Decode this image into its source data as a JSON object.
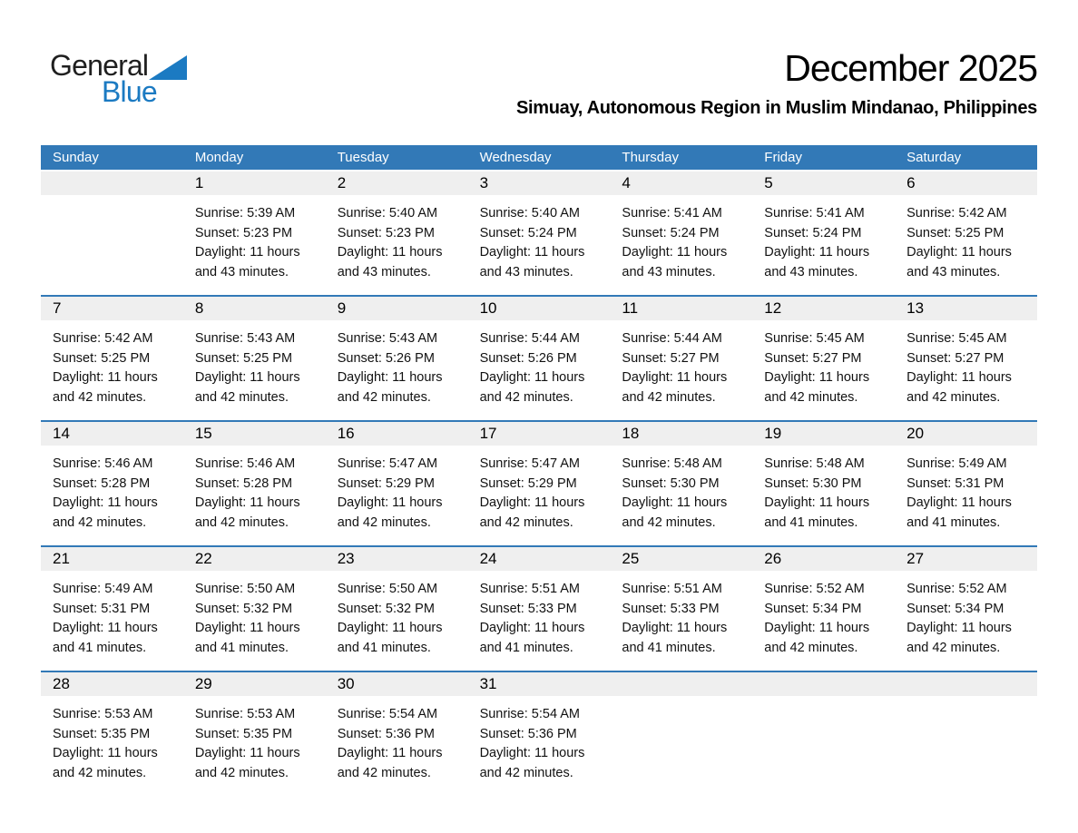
{
  "logo": {
    "general": "General",
    "blue": "Blue",
    "triangle_icon": "blue-sail-triangle"
  },
  "header": {
    "title": "December 2025",
    "subtitle": "Simuay, Autonomous Region in Muslim Mindanao, Philippines"
  },
  "colors": {
    "header_blue": "#3279b7",
    "week_divider_blue": "#3279b7",
    "day_band_gray": "#efefef",
    "logo_blue": "#1b7ac2",
    "header_text": "#ffffff"
  },
  "calendar": {
    "day_headers": [
      "Sunday",
      "Monday",
      "Tuesday",
      "Wednesday",
      "Thursday",
      "Friday",
      "Saturday"
    ],
    "weeks": [
      [
        null,
        {
          "day": "1",
          "sunrise": "Sunrise: 5:39 AM",
          "sunset": "Sunset: 5:23 PM",
          "daylight": [
            "Daylight: 11 hours",
            "and 43 minutes."
          ]
        },
        {
          "day": "2",
          "sunrise": "Sunrise: 5:40 AM",
          "sunset": "Sunset: 5:23 PM",
          "daylight": [
            "Daylight: 11 hours",
            "and 43 minutes."
          ]
        },
        {
          "day": "3",
          "sunrise": "Sunrise: 5:40 AM",
          "sunset": "Sunset: 5:24 PM",
          "daylight": [
            "Daylight: 11 hours",
            "and 43 minutes."
          ]
        },
        {
          "day": "4",
          "sunrise": "Sunrise: 5:41 AM",
          "sunset": "Sunset: 5:24 PM",
          "daylight": [
            "Daylight: 11 hours",
            "and 43 minutes."
          ]
        },
        {
          "day": "5",
          "sunrise": "Sunrise: 5:41 AM",
          "sunset": "Sunset: 5:24 PM",
          "daylight": [
            "Daylight: 11 hours",
            "and 43 minutes."
          ]
        },
        {
          "day": "6",
          "sunrise": "Sunrise: 5:42 AM",
          "sunset": "Sunset: 5:25 PM",
          "daylight": [
            "Daylight: 11 hours",
            "and 43 minutes."
          ]
        }
      ],
      [
        {
          "day": "7",
          "sunrise": "Sunrise: 5:42 AM",
          "sunset": "Sunset: 5:25 PM",
          "daylight": [
            "Daylight: 11 hours",
            "and 42 minutes."
          ]
        },
        {
          "day": "8",
          "sunrise": "Sunrise: 5:43 AM",
          "sunset": "Sunset: 5:25 PM",
          "daylight": [
            "Daylight: 11 hours",
            "and 42 minutes."
          ]
        },
        {
          "day": "9",
          "sunrise": "Sunrise: 5:43 AM",
          "sunset": "Sunset: 5:26 PM",
          "daylight": [
            "Daylight: 11 hours",
            "and 42 minutes."
          ]
        },
        {
          "day": "10",
          "sunrise": "Sunrise: 5:44 AM",
          "sunset": "Sunset: 5:26 PM",
          "daylight": [
            "Daylight: 11 hours",
            "and 42 minutes."
          ]
        },
        {
          "day": "11",
          "sunrise": "Sunrise: 5:44 AM",
          "sunset": "Sunset: 5:27 PM",
          "daylight": [
            "Daylight: 11 hours",
            "and 42 minutes."
          ]
        },
        {
          "day": "12",
          "sunrise": "Sunrise: 5:45 AM",
          "sunset": "Sunset: 5:27 PM",
          "daylight": [
            "Daylight: 11 hours",
            "and 42 minutes."
          ]
        },
        {
          "day": "13",
          "sunrise": "Sunrise: 5:45 AM",
          "sunset": "Sunset: 5:27 PM",
          "daylight": [
            "Daylight: 11 hours",
            "and 42 minutes."
          ]
        }
      ],
      [
        {
          "day": "14",
          "sunrise": "Sunrise: 5:46 AM",
          "sunset": "Sunset: 5:28 PM",
          "daylight": [
            "Daylight: 11 hours",
            "and 42 minutes."
          ]
        },
        {
          "day": "15",
          "sunrise": "Sunrise: 5:46 AM",
          "sunset": "Sunset: 5:28 PM",
          "daylight": [
            "Daylight: 11 hours",
            "and 42 minutes."
          ]
        },
        {
          "day": "16",
          "sunrise": "Sunrise: 5:47 AM",
          "sunset": "Sunset: 5:29 PM",
          "daylight": [
            "Daylight: 11 hours",
            "and 42 minutes."
          ]
        },
        {
          "day": "17",
          "sunrise": "Sunrise: 5:47 AM",
          "sunset": "Sunset: 5:29 PM",
          "daylight": [
            "Daylight: 11 hours",
            "and 42 minutes."
          ]
        },
        {
          "day": "18",
          "sunrise": "Sunrise: 5:48 AM",
          "sunset": "Sunset: 5:30 PM",
          "daylight": [
            "Daylight: 11 hours",
            "and 42 minutes."
          ]
        },
        {
          "day": "19",
          "sunrise": "Sunrise: 5:48 AM",
          "sunset": "Sunset: 5:30 PM",
          "daylight": [
            "Daylight: 11 hours",
            "and 41 minutes."
          ]
        },
        {
          "day": "20",
          "sunrise": "Sunrise: 5:49 AM",
          "sunset": "Sunset: 5:31 PM",
          "daylight": [
            "Daylight: 11 hours",
            "and 41 minutes."
          ]
        }
      ],
      [
        {
          "day": "21",
          "sunrise": "Sunrise: 5:49 AM",
          "sunset": "Sunset: 5:31 PM",
          "daylight": [
            "Daylight: 11 hours",
            "and 41 minutes."
          ]
        },
        {
          "day": "22",
          "sunrise": "Sunrise: 5:50 AM",
          "sunset": "Sunset: 5:32 PM",
          "daylight": [
            "Daylight: 11 hours",
            "and 41 minutes."
          ]
        },
        {
          "day": "23",
          "sunrise": "Sunrise: 5:50 AM",
          "sunset": "Sunset: 5:32 PM",
          "daylight": [
            "Daylight: 11 hours",
            "and 41 minutes."
          ]
        },
        {
          "day": "24",
          "sunrise": "Sunrise: 5:51 AM",
          "sunset": "Sunset: 5:33 PM",
          "daylight": [
            "Daylight: 11 hours",
            "and 41 minutes."
          ]
        },
        {
          "day": "25",
          "sunrise": "Sunrise: 5:51 AM",
          "sunset": "Sunset: 5:33 PM",
          "daylight": [
            "Daylight: 11 hours",
            "and 41 minutes."
          ]
        },
        {
          "day": "26",
          "sunrise": "Sunrise: 5:52 AM",
          "sunset": "Sunset: 5:34 PM",
          "daylight": [
            "Daylight: 11 hours",
            "and 42 minutes."
          ]
        },
        {
          "day": "27",
          "sunrise": "Sunrise: 5:52 AM",
          "sunset": "Sunset: 5:34 PM",
          "daylight": [
            "Daylight: 11 hours",
            "and 42 minutes."
          ]
        }
      ],
      [
        {
          "day": "28",
          "sunrise": "Sunrise: 5:53 AM",
          "sunset": "Sunset: 5:35 PM",
          "daylight": [
            "Daylight: 11 hours",
            "and 42 minutes."
          ]
        },
        {
          "day": "29",
          "sunrise": "Sunrise: 5:53 AM",
          "sunset": "Sunset: 5:35 PM",
          "daylight": [
            "Daylight: 11 hours",
            "and 42 minutes."
          ]
        },
        {
          "day": "30",
          "sunrise": "Sunrise: 5:54 AM",
          "sunset": "Sunset: 5:36 PM",
          "daylight": [
            "Daylight: 11 hours",
            "and 42 minutes."
          ]
        },
        {
          "day": "31",
          "sunrise": "Sunrise: 5:54 AM",
          "sunset": "Sunset: 5:36 PM",
          "daylight": [
            "Daylight: 11 hours",
            "and 42 minutes."
          ]
        },
        null,
        null,
        null
      ]
    ]
  }
}
